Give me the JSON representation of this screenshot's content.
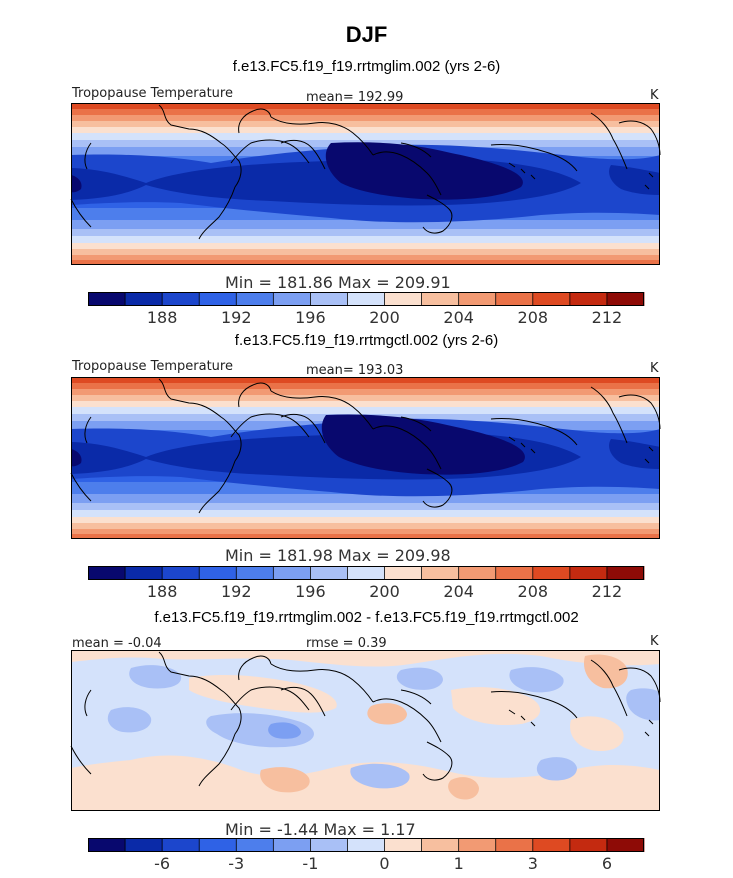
{
  "figure": {
    "title": "DJF"
  },
  "panels": [
    {
      "subtitle": "f.e13.FC5.f19_f19.rrtmglim.002 (yrs 2-6)",
      "field_label": "Tropopause Temperature",
      "stat_label": "mean= 192.99",
      "units": "K",
      "min_max": "Min = 181.86 Max = 209.91",
      "colorbar": {
        "colors": [
          "#08086e",
          "#0a2aa8",
          "#1c46cc",
          "#2f62e6",
          "#4d7eec",
          "#7c9ff2",
          "#a9c0f6",
          "#d4e2fb",
          "#fbe0cf",
          "#f7bf9f",
          "#f29a73",
          "#ea7248",
          "#de4a22",
          "#c42a10",
          "#8e0b06"
        ],
        "tick_labels": [
          "188",
          "192",
          "196",
          "200",
          "204",
          "208",
          "212"
        ]
      }
    },
    {
      "subtitle": "f.e13.FC5.f19_f19.rrtmgctl.002 (yrs 2-6)",
      "field_label": "Tropopause Temperature",
      "stat_label": "mean= 193.03",
      "units": "K",
      "min_max": "Min = 181.98 Max = 209.98",
      "colorbar": {
        "colors": [
          "#08086e",
          "#0a2aa8",
          "#1c46cc",
          "#2f62e6",
          "#4d7eec",
          "#7c9ff2",
          "#a9c0f6",
          "#d4e2fb",
          "#fbe0cf",
          "#f7bf9f",
          "#f29a73",
          "#ea7248",
          "#de4a22",
          "#c42a10",
          "#8e0b06"
        ],
        "tick_labels": [
          "188",
          "192",
          "196",
          "200",
          "204",
          "208",
          "212"
        ]
      }
    },
    {
      "subtitle": "f.e13.FC5.f19_f19.rrtmglim.002 - f.e13.FC5.f19_f19.rrtmgctl.002",
      "field_label": "mean = -0.04",
      "stat_label": "rmse = 0.39",
      "units": "K",
      "min_max": "Min = -1.44 Max = 1.17",
      "colorbar": {
        "colors": [
          "#08086e",
          "#0a2aa8",
          "#1c46cc",
          "#2f62e6",
          "#4d7eec",
          "#7c9ff2",
          "#a9c0f6",
          "#d4e2fb",
          "#fbe0cf",
          "#f7bf9f",
          "#f29a73",
          "#ea7248",
          "#de4a22",
          "#c42a10",
          "#8e0b06"
        ],
        "tick_labels": [
          "-6",
          "-3",
          "-1",
          "0",
          "1",
          "3",
          "6"
        ]
      }
    }
  ]
}
